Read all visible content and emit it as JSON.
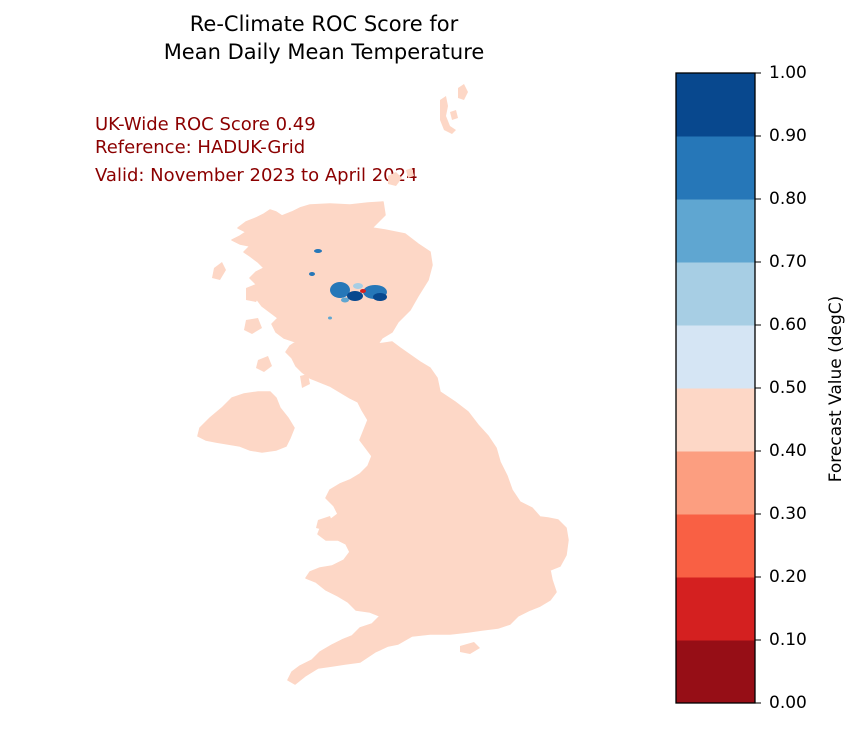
{
  "title": {
    "line1": "Re-Climate ROC Score for",
    "line2": "Mean Daily Mean Temperature"
  },
  "annotations": {
    "score": "UK-Wide ROC Score 0.49",
    "reference": "Reference: HADUK-Grid",
    "valid": "Valid: November 2023 to April 2024"
  },
  "colorbar": {
    "label": "Forecast Value (degC)",
    "ticks": [
      "0.00",
      "0.10",
      "0.20",
      "0.30",
      "0.40",
      "0.50",
      "0.60",
      "0.70",
      "0.80",
      "0.90",
      "1.00"
    ],
    "colors": [
      "#960e16",
      "#d42020",
      "#f96044",
      "#fc9e80",
      "#fdd7c6",
      "#d5e5f4",
      "#a7cee4",
      "#5fa6d1",
      "#2677b8",
      "#08488e"
    ]
  },
  "map": {
    "land_color": "#fdd7c6",
    "anomaly_colors": [
      "#2677b8",
      "#08488e",
      "#a7cee4",
      "#d42020"
    ]
  }
}
